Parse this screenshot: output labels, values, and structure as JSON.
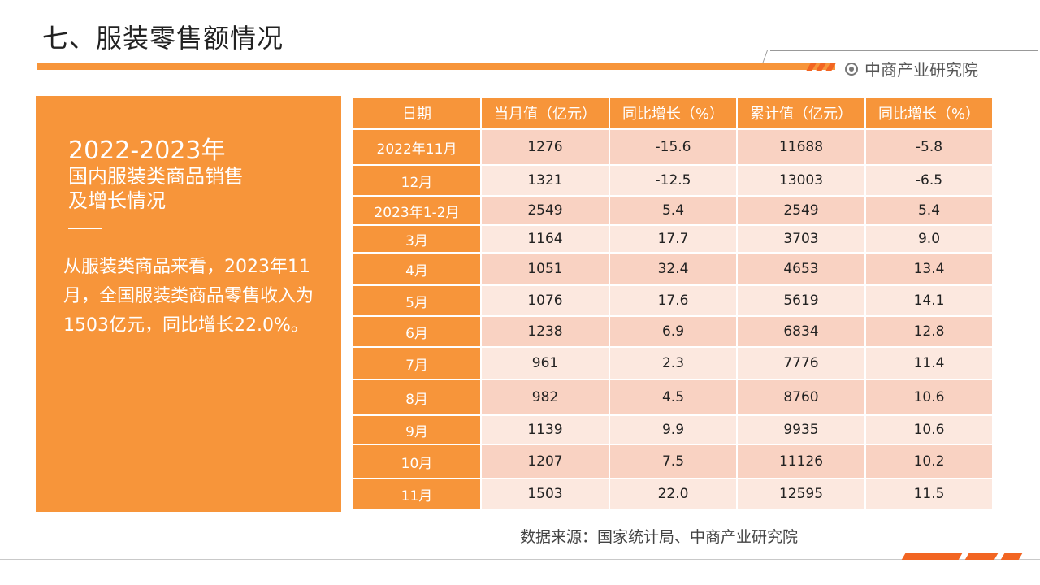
{
  "page": {
    "title": "七、服装零售额情况"
  },
  "brand": {
    "name": "中商产业研究院",
    "icon": "target-icon"
  },
  "left_panel": {
    "heading_year": "2022-2023年",
    "heading_lines": [
      "国内服装类商品销售",
      "及增长情况"
    ],
    "body": "从服装类商品来看，2023年11月，全国服装类商品零售收入为1503亿元，同比增长22.0%。"
  },
  "table": {
    "headers": [
      "日期",
      "当月值（亿元）",
      "同比增长（%）",
      "累计值（亿元）",
      "同比增长（%）"
    ],
    "rows": [
      [
        "2022年11月",
        "1276",
        "-15.6",
        "11688",
        "-5.8"
      ],
      [
        "12月",
        "1321",
        "-12.5",
        "13003",
        "-6.5"
      ],
      [
        "2023年1-2月",
        "2549",
        "5.4",
        "2549",
        "5.4"
      ],
      [
        "3月",
        "1164",
        "17.7",
        "3703",
        "9.0"
      ],
      [
        "4月",
        "1051",
        "32.4",
        "4653",
        "13.4"
      ],
      [
        "5月",
        "1076",
        "17.6",
        "5619",
        "14.1"
      ],
      [
        "6月",
        "1238",
        "6.9",
        "6834",
        "12.8"
      ],
      [
        "7月",
        "961",
        "2.3",
        "7776",
        "11.4"
      ],
      [
        "8月",
        "982",
        "4.5",
        "8760",
        "10.6"
      ],
      [
        "9月",
        "1139",
        "9.9",
        "9935",
        "10.6"
      ],
      [
        "10月",
        "1207",
        "7.5",
        "11126",
        "10.2"
      ],
      [
        "11月",
        "1503",
        "22.0",
        "12595",
        "11.5"
      ]
    ]
  },
  "source": "数据来源：国家统计局、中商产业研究院",
  "colors": {
    "accent": "#f7953a",
    "row_odd": "#f9d2c2",
    "row_even": "#fce8df",
    "stripe": "#f26522"
  }
}
